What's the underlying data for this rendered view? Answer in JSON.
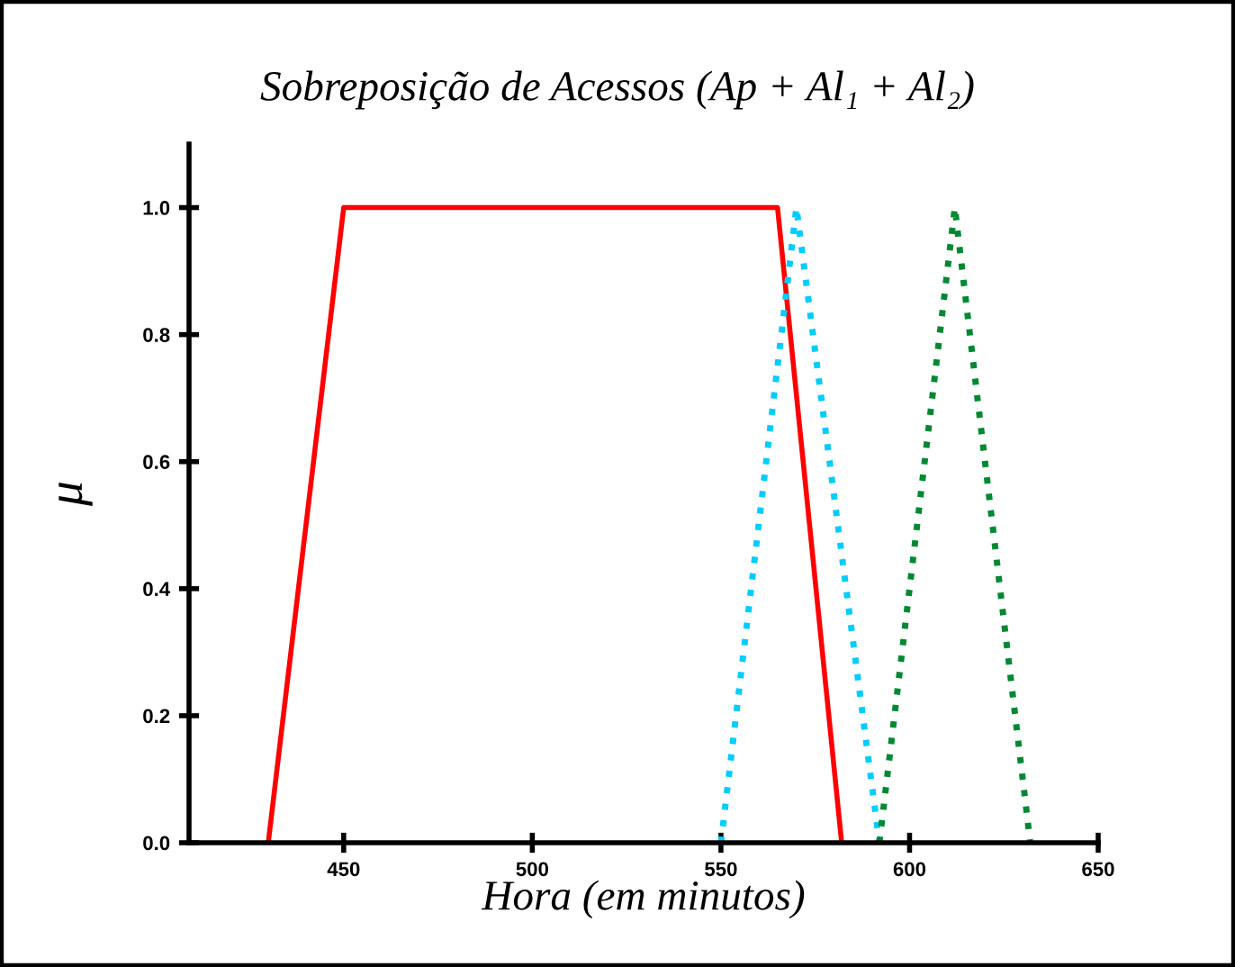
{
  "chart_data": {
    "type": "line",
    "title": "Sobreposição de Acessos (Ap + Al₁ + Al₂)",
    "xlabel": "Hora (em minutos)",
    "ylabel": "μ",
    "xlim": [
      409,
      650
    ],
    "ylim": [
      0,
      1.1
    ],
    "xticks": [
      450,
      500,
      550,
      600,
      650
    ],
    "yticks": [
      {
        "value": 0,
        "label": "0.0"
      },
      {
        "value": 0.2,
        "label": "0.2"
      },
      {
        "value": 0.4,
        "label": "0.4"
      },
      {
        "value": 0.6,
        "label": "0.6"
      },
      {
        "value": 0.8,
        "label": "0.8"
      },
      {
        "value": 1.0,
        "label": "1.0"
      }
    ],
    "grid": false,
    "legend": false,
    "marker": "none",
    "series": [
      {
        "color": "#ff0000",
        "x": [
          430,
          450,
          565,
          582
        ],
        "values": [
          0,
          1,
          1,
          0
        ],
        "line_style": "solid"
      },
      {
        "color": "#00ccff",
        "x": [
          550,
          570,
          592
        ],
        "values": [
          0,
          1,
          0
        ],
        "line_style": "dotted"
      },
      {
        "color": "#008833",
        "x": [
          592,
          612,
          632
        ],
        "values": [
          0,
          1,
          0
        ],
        "line_style": "dotted"
      }
    ]
  }
}
